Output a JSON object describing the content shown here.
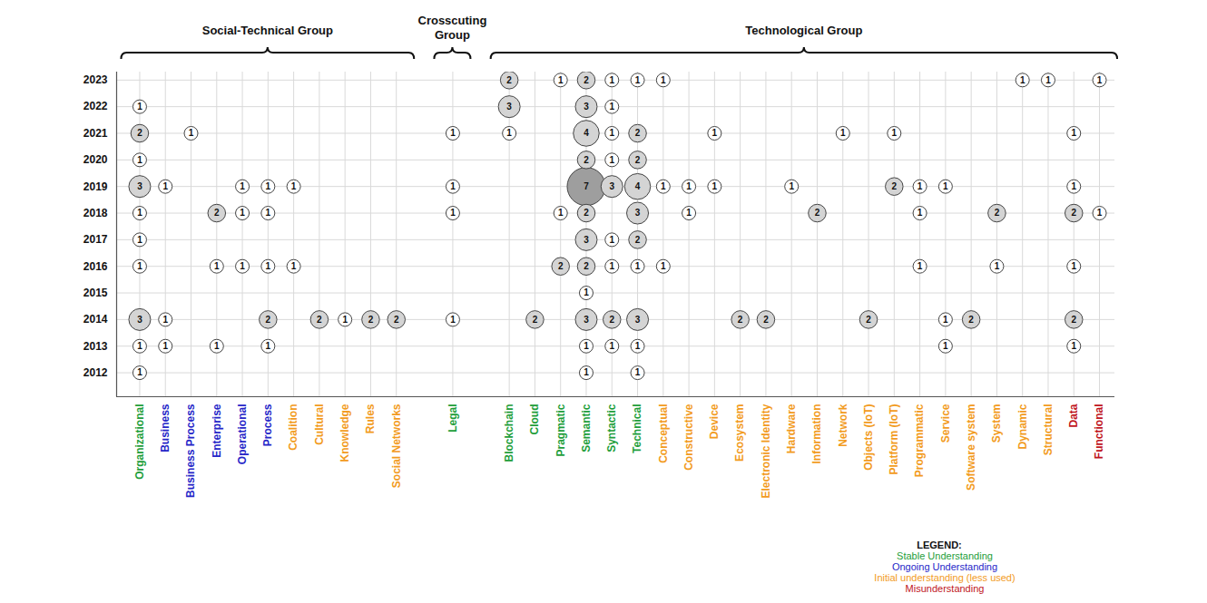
{
  "chart_data": {
    "type": "bubble",
    "categories": [
      "Organizational",
      "Business",
      "Business Process",
      "Enterprise",
      "Operational",
      "Process",
      "Coalition",
      "Cultural",
      "Knowledge",
      "Rules",
      "Social Networks",
      "Legal",
      "Blockchain",
      "Cloud",
      "Pragmatic",
      "Semantic",
      "Syntactic",
      "Technical",
      "Conceptual",
      "Constructive",
      "Device",
      "Ecosystem",
      "Electronic Identity",
      "Hardware",
      "Information",
      "Network",
      "Objects (IoT)",
      "Platform (IoT)",
      "Programmatic",
      "Service",
      "Software system",
      "System",
      "Dynamic",
      "Structural",
      "Data",
      "Functional"
    ],
    "label_classes": [
      "Stable Understanding",
      "Ongoing Understanding",
      "Ongoing Understanding",
      "Ongoing Understanding",
      "Ongoing Understanding",
      "Ongoing Understanding",
      "Initial understanding (less used)",
      "Initial understanding (less used)",
      "Initial understanding (less used)",
      "Initial understanding (less used)",
      "Initial understanding (less used)",
      "Stable Understanding",
      "Stable Understanding",
      "Stable Understanding",
      "Stable Understanding",
      "Stable Understanding",
      "Stable Understanding",
      "Stable Understanding",
      "Initial understanding (less used)",
      "Initial understanding (less used)",
      "Initial understanding (less used)",
      "Initial understanding (less used)",
      "Initial understanding (less used)",
      "Initial understanding (less used)",
      "Initial understanding (less used)",
      "Initial understanding (less used)",
      "Initial understanding (less used)",
      "Initial understanding (less used)",
      "Initial understanding (less used)",
      "Initial understanding (less used)",
      "Initial understanding (less used)",
      "Initial understanding (less used)",
      "Initial understanding (less used)",
      "Initial understanding (less used)",
      "Misunderstanding",
      "Misunderstanding"
    ],
    "groups": [
      {
        "name": "Social-Technical Group",
        "first": "Organizational",
        "last": "Social Networks"
      },
      {
        "name": "Crosscuting Group",
        "first": "Legal",
        "last": "Legal"
      },
      {
        "name": "Technological Group",
        "first": "Blockchain",
        "last": "Functional"
      }
    ],
    "legend_title": "LEGEND:",
    "series": [
      {
        "name": "Stable Understanding",
        "color": "#1e9e3a"
      },
      {
        "name": "Ongoing Understanding",
        "color": "#2626c8"
      },
      {
        "name": "Initial understanding (less used)",
        "color": "#f29b1d"
      },
      {
        "name": "Misunderstanding",
        "color": "#c0141c"
      }
    ],
    "ylim": [
      2011.1,
      2023.3
    ],
    "yticks": [
      2012,
      2013,
      2014,
      2015,
      2016,
      2017,
      2018,
      2019,
      2020,
      2021,
      2022,
      2023
    ],
    "grid": true,
    "data_labels": true,
    "points": [
      {
        "category": "Blockchain",
        "year": 2023,
        "value": 2
      },
      {
        "category": "Pragmatic",
        "year": 2023,
        "value": 1
      },
      {
        "category": "Semantic",
        "year": 2023,
        "value": 2
      },
      {
        "category": "Syntactic",
        "year": 2023,
        "value": 1
      },
      {
        "category": "Technical",
        "year": 2023,
        "value": 1
      },
      {
        "category": "Conceptual",
        "year": 2023,
        "value": 1
      },
      {
        "category": "Dynamic",
        "year": 2023,
        "value": 1
      },
      {
        "category": "Structural",
        "year": 2023,
        "value": 1
      },
      {
        "category": "Functional",
        "year": 2023,
        "value": 1
      },
      {
        "category": "Organizational",
        "year": 2022,
        "value": 1
      },
      {
        "category": "Blockchain",
        "year": 2022,
        "value": 3
      },
      {
        "category": "Semantic",
        "year": 2022,
        "value": 3
      },
      {
        "category": "Syntactic",
        "year": 2022,
        "value": 1
      },
      {
        "category": "Organizational",
        "year": 2021,
        "value": 2
      },
      {
        "category": "Business Process",
        "year": 2021,
        "value": 1
      },
      {
        "category": "Legal",
        "year": 2021,
        "value": 1
      },
      {
        "category": "Blockchain",
        "year": 2021,
        "value": 1
      },
      {
        "category": "Semantic",
        "year": 2021,
        "value": 4
      },
      {
        "category": "Syntactic",
        "year": 2021,
        "value": 1
      },
      {
        "category": "Technical",
        "year": 2021,
        "value": 2
      },
      {
        "category": "Device",
        "year": 2021,
        "value": 1
      },
      {
        "category": "Network",
        "year": 2021,
        "value": 1
      },
      {
        "category": "Platform (IoT)",
        "year": 2021,
        "value": 1
      },
      {
        "category": "Data",
        "year": 2021,
        "value": 1
      },
      {
        "category": "Organizational",
        "year": 2020,
        "value": 1
      },
      {
        "category": "Semantic",
        "year": 2020,
        "value": 2
      },
      {
        "category": "Syntactic",
        "year": 2020,
        "value": 1
      },
      {
        "category": "Technical",
        "year": 2020,
        "value": 2
      },
      {
        "category": "Organizational",
        "year": 2019,
        "value": 3
      },
      {
        "category": "Business",
        "year": 2019,
        "value": 1
      },
      {
        "category": "Operational",
        "year": 2019,
        "value": 1
      },
      {
        "category": "Process",
        "year": 2019,
        "value": 1
      },
      {
        "category": "Coalition",
        "year": 2019,
        "value": 1
      },
      {
        "category": "Legal",
        "year": 2019,
        "value": 1
      },
      {
        "category": "Semantic",
        "year": 2019,
        "value": 7
      },
      {
        "category": "Syntactic",
        "year": 2019,
        "value": 3
      },
      {
        "category": "Technical",
        "year": 2019,
        "value": 4
      },
      {
        "category": "Conceptual",
        "year": 2019,
        "value": 1
      },
      {
        "category": "Constructive",
        "year": 2019,
        "value": 1
      },
      {
        "category": "Device",
        "year": 2019,
        "value": 1
      },
      {
        "category": "Hardware",
        "year": 2019,
        "value": 1
      },
      {
        "category": "Platform (IoT)",
        "year": 2019,
        "value": 2
      },
      {
        "category": "Programmatic",
        "year": 2019,
        "value": 1
      },
      {
        "category": "Service",
        "year": 2019,
        "value": 1
      },
      {
        "category": "Data",
        "year": 2019,
        "value": 1
      },
      {
        "category": "Organizational",
        "year": 2018,
        "value": 1
      },
      {
        "category": "Enterprise",
        "year": 2018,
        "value": 2
      },
      {
        "category": "Operational",
        "year": 2018,
        "value": 1
      },
      {
        "category": "Process",
        "year": 2018,
        "value": 1
      },
      {
        "category": "Legal",
        "year": 2018,
        "value": 1
      },
      {
        "category": "Pragmatic",
        "year": 2018,
        "value": 1
      },
      {
        "category": "Semantic",
        "year": 2018,
        "value": 2
      },
      {
        "category": "Technical",
        "year": 2018,
        "value": 3
      },
      {
        "category": "Constructive",
        "year": 2018,
        "value": 1
      },
      {
        "category": "Information",
        "year": 2018,
        "value": 2
      },
      {
        "category": "Programmatic",
        "year": 2018,
        "value": 1
      },
      {
        "category": "System",
        "year": 2018,
        "value": 2
      },
      {
        "category": "Data",
        "year": 2018,
        "value": 2
      },
      {
        "category": "Functional",
        "year": 2018,
        "value": 1
      },
      {
        "category": "Organizational",
        "year": 2017,
        "value": 1
      },
      {
        "category": "Semantic",
        "year": 2017,
        "value": 3
      },
      {
        "category": "Syntactic",
        "year": 2017,
        "value": 1
      },
      {
        "category": "Technical",
        "year": 2017,
        "value": 2
      },
      {
        "category": "Organizational",
        "year": 2016,
        "value": 1
      },
      {
        "category": "Enterprise",
        "year": 2016,
        "value": 1
      },
      {
        "category": "Operational",
        "year": 2016,
        "value": 1
      },
      {
        "category": "Process",
        "year": 2016,
        "value": 1
      },
      {
        "category": "Coalition",
        "year": 2016,
        "value": 1
      },
      {
        "category": "Pragmatic",
        "year": 2016,
        "value": 2
      },
      {
        "category": "Semantic",
        "year": 2016,
        "value": 2
      },
      {
        "category": "Syntactic",
        "year": 2016,
        "value": 1
      },
      {
        "category": "Technical",
        "year": 2016,
        "value": 1
      },
      {
        "category": "Conceptual",
        "year": 2016,
        "value": 1
      },
      {
        "category": "Programmatic",
        "year": 2016,
        "value": 1
      },
      {
        "category": "System",
        "year": 2016,
        "value": 1
      },
      {
        "category": "Data",
        "year": 2016,
        "value": 1
      },
      {
        "category": "Semantic",
        "year": 2015,
        "value": 1
      },
      {
        "category": "Organizational",
        "year": 2014,
        "value": 3
      },
      {
        "category": "Business",
        "year": 2014,
        "value": 1
      },
      {
        "category": "Process",
        "year": 2014,
        "value": 2
      },
      {
        "category": "Cultural",
        "year": 2014,
        "value": 2
      },
      {
        "category": "Knowledge",
        "year": 2014,
        "value": 1
      },
      {
        "category": "Rules",
        "year": 2014,
        "value": 2
      },
      {
        "category": "Social Networks",
        "year": 2014,
        "value": 2
      },
      {
        "category": "Legal",
        "year": 2014,
        "value": 1
      },
      {
        "category": "Cloud",
        "year": 2014,
        "value": 2
      },
      {
        "category": "Semantic",
        "year": 2014,
        "value": 3
      },
      {
        "category": "Syntactic",
        "year": 2014,
        "value": 2
      },
      {
        "category": "Technical",
        "year": 2014,
        "value": 3
      },
      {
        "category": "Ecosystem",
        "year": 2014,
        "value": 2
      },
      {
        "category": "Electronic Identity",
        "year": 2014,
        "value": 2
      },
      {
        "category": "Objects (IoT)",
        "year": 2014,
        "value": 2
      },
      {
        "category": "Service",
        "year": 2014,
        "value": 1
      },
      {
        "category": "Software system",
        "year": 2014,
        "value": 2
      },
      {
        "category": "Data",
        "year": 2014,
        "value": 2
      },
      {
        "category": "Organizational",
        "year": 2013,
        "value": 1
      },
      {
        "category": "Business",
        "year": 2013,
        "value": 1
      },
      {
        "category": "Enterprise",
        "year": 2013,
        "value": 1
      },
      {
        "category": "Process",
        "year": 2013,
        "value": 1
      },
      {
        "category": "Semantic",
        "year": 2013,
        "value": 1
      },
      {
        "category": "Syntactic",
        "year": 2013,
        "value": 1
      },
      {
        "category": "Technical",
        "year": 2013,
        "value": 1
      },
      {
        "category": "Service",
        "year": 2013,
        "value": 1
      },
      {
        "category": "Data",
        "year": 2013,
        "value": 1
      },
      {
        "category": "Organizational",
        "year": 2012,
        "value": 1
      },
      {
        "category": "Semantic",
        "year": 2012,
        "value": 1
      },
      {
        "category": "Technical",
        "year": 2012,
        "value": 1
      }
    ]
  }
}
